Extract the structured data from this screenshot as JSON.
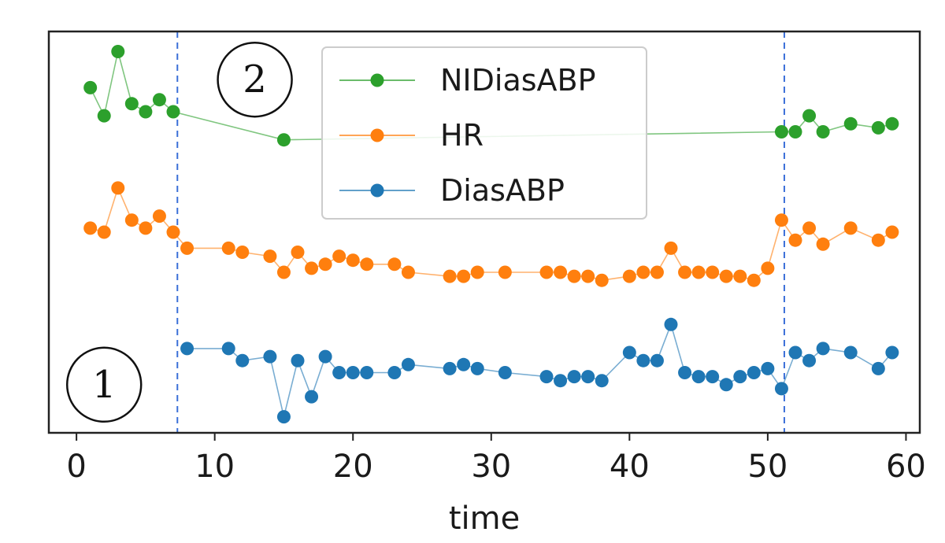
{
  "chart_data": {
    "type": "line",
    "xlabel": "time",
    "ylabel": "",
    "xlim": [
      -2,
      61
    ],
    "ylim": [
      0,
      100
    ],
    "xticks": [
      0,
      10,
      20,
      30,
      40,
      50,
      60
    ],
    "y_ticks_shown": false,
    "grid": false,
    "legend_position": "top-center",
    "vertical_lines": [
      7.3,
      51.2
    ],
    "region_labels": [
      {
        "label": "1",
        "x": 2,
        "y": 12
      },
      {
        "label": "2",
        "x": 12.9,
        "y": 88
      }
    ],
    "series": [
      {
        "name": "NIDiasABP",
        "color": "#2ca02c",
        "points": [
          [
            1,
            86
          ],
          [
            2,
            79
          ],
          [
            3,
            95
          ],
          [
            4,
            82
          ],
          [
            5,
            80
          ],
          [
            6,
            83
          ],
          [
            7,
            80
          ],
          [
            15,
            73
          ],
          [
            51,
            75
          ],
          [
            52,
            75
          ],
          [
            53,
            79
          ],
          [
            54,
            75
          ],
          [
            56,
            77
          ],
          [
            58,
            76
          ],
          [
            59,
            77
          ]
        ]
      },
      {
        "name": "HR",
        "color": "#ff7f0e",
        "points": [
          [
            1,
            51
          ],
          [
            2,
            50
          ],
          [
            3,
            61
          ],
          [
            4,
            53
          ],
          [
            5,
            51
          ],
          [
            6,
            54
          ],
          [
            7,
            50
          ],
          [
            8,
            46
          ],
          [
            11,
            46
          ],
          [
            12,
            45
          ],
          [
            14,
            44
          ],
          [
            15,
            40
          ],
          [
            16,
            45
          ],
          [
            17,
            41
          ],
          [
            18,
            42
          ],
          [
            19,
            44
          ],
          [
            20,
            43
          ],
          [
            21,
            42
          ],
          [
            23,
            42
          ],
          [
            24,
            40
          ],
          [
            27,
            39
          ],
          [
            28,
            39
          ],
          [
            29,
            40
          ],
          [
            31,
            40
          ],
          [
            34,
            40
          ],
          [
            35,
            40
          ],
          [
            36,
            39
          ],
          [
            37,
            39
          ],
          [
            38,
            38
          ],
          [
            40,
            39
          ],
          [
            41,
            40
          ],
          [
            42,
            40
          ],
          [
            43,
            46
          ],
          [
            44,
            40
          ],
          [
            45,
            40
          ],
          [
            46,
            40
          ],
          [
            47,
            39
          ],
          [
            48,
            39
          ],
          [
            49,
            38
          ],
          [
            50,
            41
          ],
          [
            51,
            53
          ],
          [
            52,
            48
          ],
          [
            53,
            51
          ],
          [
            54,
            47
          ],
          [
            56,
            51
          ],
          [
            58,
            48
          ],
          [
            59,
            50
          ]
        ]
      },
      {
        "name": "DiasABP",
        "color": "#1f77b4",
        "points": [
          [
            8,
            21
          ],
          [
            11,
            21
          ],
          [
            12,
            18
          ],
          [
            14,
            19
          ],
          [
            15,
            4
          ],
          [
            16,
            18
          ],
          [
            17,
            9
          ],
          [
            18,
            19
          ],
          [
            19,
            15
          ],
          [
            20,
            15
          ],
          [
            21,
            15
          ],
          [
            23,
            15
          ],
          [
            24,
            17
          ],
          [
            27,
            16
          ],
          [
            28,
            17
          ],
          [
            29,
            16
          ],
          [
            31,
            15
          ],
          [
            34,
            14
          ],
          [
            35,
            13
          ],
          [
            36,
            14
          ],
          [
            37,
            14
          ],
          [
            38,
            13
          ],
          [
            40,
            20
          ],
          [
            41,
            18
          ],
          [
            42,
            18
          ],
          [
            43,
            27
          ],
          [
            44,
            15
          ],
          [
            45,
            14
          ],
          [
            46,
            14
          ],
          [
            47,
            12
          ],
          [
            48,
            14
          ],
          [
            49,
            15
          ],
          [
            50,
            16
          ],
          [
            51,
            11
          ],
          [
            52,
            20
          ],
          [
            53,
            18
          ],
          [
            54,
            21
          ],
          [
            56,
            20
          ],
          [
            58,
            16
          ],
          [
            59,
            20
          ]
        ]
      }
    ]
  }
}
